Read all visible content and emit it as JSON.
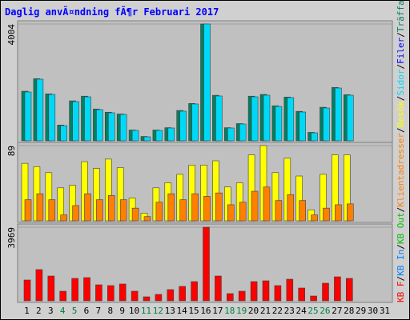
{
  "chart_data": {
    "type": "bar",
    "title": "Daglig anvÃ¤ndning fÃ¶r Februari 2017",
    "categories": [
      "1",
      "2",
      "3",
      "4",
      "5",
      "6",
      "7",
      "8",
      "9",
      "10",
      "11",
      "12",
      "13",
      "14",
      "15",
      "16",
      "17",
      "18",
      "19",
      "20",
      "21",
      "22",
      "23",
      "24",
      "25",
      "26",
      "27",
      "28",
      "29",
      "30",
      "31"
    ],
    "highlight_indices": [
      3,
      4,
      10,
      11,
      17,
      18,
      24,
      25
    ],
    "highlight_color": "#008040",
    "panels": [
      {
        "ylim": [
          0,
          4004
        ],
        "yticks": [
          4004
        ],
        "series": [
          {
            "color": "#008060",
            "values": [
              1700,
              2130,
              1610,
              540,
              1370,
              1530,
              1090,
              980,
              920,
              370,
              150,
              370,
              450,
              1040,
              1280,
              4004,
              1560,
              450,
              590,
              1530,
              1590,
              1200,
              1500,
              1010,
              290,
              1150,
              1830,
              1580,
              null,
              null,
              null
            ]
          },
          {
            "color": "#00d8f8",
            "values": [
              1673,
              2112,
              1590,
              521,
              1344,
              1508,
              1069,
              960,
              905,
              356,
              137,
              356,
              439,
              1015,
              1262,
              4004,
              1536,
              439,
              576,
              1508,
              1563,
              1179,
              1481,
              987,
              274,
              1124,
              1810,
              1563,
              null,
              null,
              null
            ]
          }
        ]
      },
      {
        "ylim": [
          0,
          89
        ],
        "yticks": [
          89
        ],
        "series": [
          {
            "color": "#ffff00",
            "values": [
              68,
              64,
              57,
              39,
              42,
              70,
              62,
              73,
              63,
              27,
              9,
              39,
              45,
              55,
              66,
              66,
              71,
              40,
              45,
              78,
              89,
              57,
              74,
              53,
              13,
              55,
              78,
              78,
              null,
              null,
              null
            ]
          },
          {
            "color": "#ff8000",
            "values": [
              25,
              32,
              25,
              7,
              18,
              32,
              25,
              30,
              25,
              15,
              5,
              22,
              32,
              25,
              32,
              29,
              33,
              19,
              22,
              35,
              40,
              24,
              31,
              24,
              7,
              15,
              19,
              20,
              null,
              null,
              null
            ]
          }
        ]
      },
      {
        "ylim": [
          0,
          3969
        ],
        "yticks": [
          3969
        ],
        "series": [
          {
            "color": "#ff0000",
            "values": [
              1122,
              1683,
              1337,
              518,
              1208,
              1251,
              863,
              820,
              906,
              518,
              216,
              345,
              604,
              777,
              1035,
              3969,
              1337,
              388,
              518,
              1035,
              1079,
              820,
              1165,
              690,
              259,
              949,
              1294,
              1208,
              null,
              null,
              null
            ]
          }
        ]
      }
    ],
    "legend_separator": "/",
    "legend": [
      {
        "label": "KB F",
        "color": "#ff0000"
      },
      {
        "label": "KB In",
        "color": "#0080ff"
      },
      {
        "label": "KB Out",
        "color": "#00c000"
      },
      {
        "label": "Klientadresser",
        "color": "#ff8000"
      },
      {
        "label": "Besök",
        "color": "#ffff00"
      },
      {
        "label": "Sidor",
        "color": "#00d8f8"
      },
      {
        "label": "Filer",
        "color": "#0000ff"
      },
      {
        "label": "Träffar",
        "color": "#008060"
      }
    ]
  }
}
